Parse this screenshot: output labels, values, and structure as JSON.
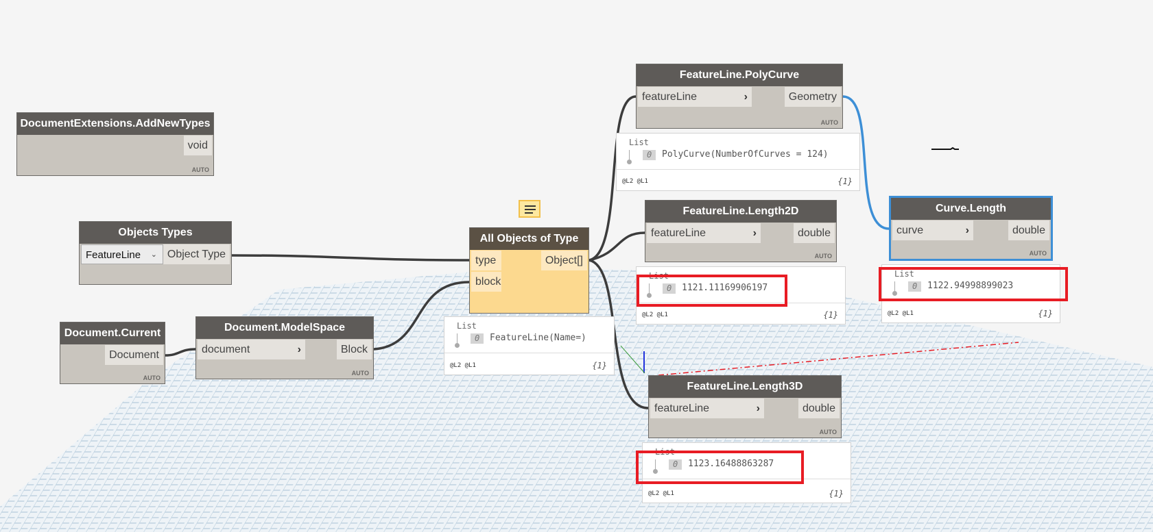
{
  "colors": {
    "wire": "#3c3c3c",
    "selected_wire": "#3d8fd6",
    "highlight_box": "#e81c24",
    "node_header": "#5e5b58",
    "node_body": "#c9c5be",
    "active_node_body": "#fcd98f"
  },
  "nodes": {
    "add_new_types": {
      "title": "DocumentExtensions.AddNewTypes",
      "output": "void",
      "mode": "AUTO"
    },
    "objects_types": {
      "title": "Objects Types",
      "dropdown_value": "FeatureLine",
      "output": "Object Type"
    },
    "document_current": {
      "title": "Document.Current",
      "output": "Document",
      "mode": "AUTO"
    },
    "model_space": {
      "title": "Document.ModelSpace",
      "input": "document",
      "output": "Block",
      "mode": "AUTO"
    },
    "all_objects": {
      "title": "All Objects of Type",
      "inputs": [
        "type",
        "block"
      ],
      "output": "Object[]",
      "note_icon": "note-icon"
    },
    "polycurve": {
      "title": "FeatureLine.PolyCurve",
      "input": "featureLine",
      "output": "Geometry",
      "mode": "AUTO"
    },
    "length2d": {
      "title": "FeatureLine.Length2D",
      "input": "featureLine",
      "output": "double",
      "mode": "AUTO"
    },
    "curve_length": {
      "title": "Curve.Length",
      "input": "curve",
      "output": "double",
      "mode": "AUTO"
    },
    "length3d": {
      "title": "FeatureLine.Length3D",
      "input": "featureLine",
      "output": "double",
      "mode": "AUTO"
    }
  },
  "watches": {
    "all_objects": {
      "header": "List",
      "index": "0",
      "value": "FeatureLine(Name=)",
      "levels": "@L2 @L1",
      "count": "{1}"
    },
    "polycurve": {
      "header": "List",
      "index": "0",
      "value": "PolyCurve(NumberOfCurves = 124)",
      "levels": "@L2 @L1",
      "count": "{1}"
    },
    "length2d": {
      "header": "List",
      "index": "0",
      "value": "1121.11169906197",
      "levels": "@L2 @L1",
      "count": "{1}"
    },
    "curve_length": {
      "header": "List",
      "index": "0",
      "value": "1122.94998899023",
      "levels": "@L2 @L1",
      "count": "{1}"
    },
    "length3d": {
      "header": "List",
      "index": "0",
      "value": "1123.16488863287",
      "levels": "@L2 @L1",
      "count": "{1}"
    }
  }
}
